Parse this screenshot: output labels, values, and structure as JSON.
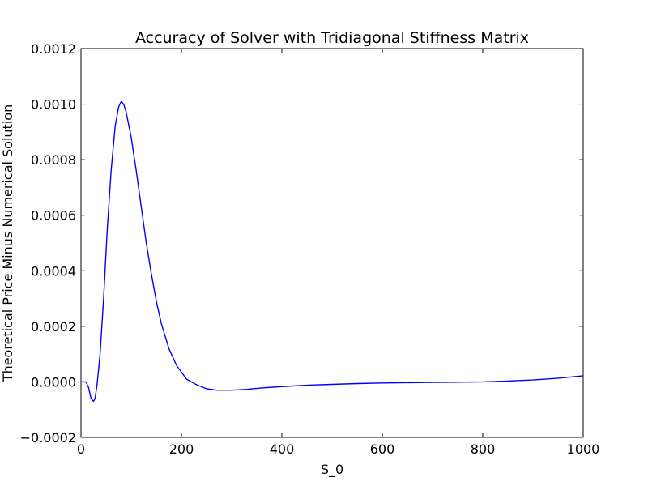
{
  "chart_data": {
    "type": "line",
    "title": "Accuracy of Solver with Tridiagonal Stiffness Matrix",
    "xlabel": "S_0",
    "ylabel": "Theoretical Price Minus Numerical Solution",
    "xlim": [
      0,
      1000
    ],
    "ylim": [
      -0.0002,
      0.0012
    ],
    "xticks": [
      0,
      200,
      400,
      600,
      800,
      1000
    ],
    "xtick_labels": [
      "0",
      "200",
      "400",
      "600",
      "800",
      "1000"
    ],
    "yticks": [
      -0.0002,
      0.0,
      0.0002,
      0.0004,
      0.0006,
      0.0008,
      0.001,
      0.0012
    ],
    "ytick_labels": [
      "−0.0002",
      "0.0000",
      "0.0002",
      "0.0004",
      "0.0006",
      "0.0008",
      "0.0010",
      "0.0012"
    ],
    "grid": false,
    "series": [
      {
        "color": "#0000ff",
        "x": [
          0,
          5,
          10,
          15,
          20,
          25,
          28,
          32,
          38,
          45,
          52,
          60,
          68,
          75,
          80,
          85,
          90,
          100,
          110,
          120,
          130,
          140,
          150,
          160,
          175,
          190,
          210,
          230,
          250,
          270,
          300,
          330,
          360,
          400,
          450,
          500,
          550,
          600,
          650,
          700,
          750,
          800,
          850,
          900,
          950,
          1000
        ],
        "values": [
          0.0,
          0.0,
          0.0,
          -2e-05,
          -6e-05,
          -7e-05,
          -6e-05,
          -1e-05,
          0.0001,
          0.0003,
          0.00054,
          0.00076,
          0.00092,
          0.00099,
          0.00101,
          0.001,
          0.00097,
          0.00088,
          0.00076,
          0.00063,
          0.0005,
          0.00039,
          0.00029,
          0.00021,
          0.00012,
          6e-05,
          1e-05,
          -1e-05,
          -2.5e-05,
          -3e-05,
          -3e-05,
          -2.7e-05,
          -2.2e-05,
          -1.7e-05,
          -1.2e-05,
          -9e-06,
          -6e-06,
          -4e-06,
          -3e-06,
          -2e-06,
          -1e-06,
          0.0,
          3e-06,
          7e-06,
          1.3e-05,
          2.2e-05
        ]
      }
    ]
  }
}
